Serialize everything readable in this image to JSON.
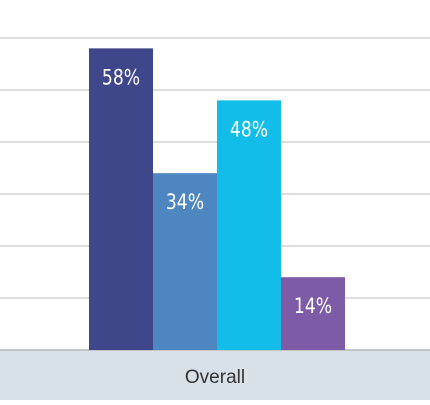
{
  "chart_data": {
    "type": "bar",
    "categories": [
      "Overall"
    ],
    "series": [
      {
        "color": "#3f478b",
        "values": [
          58
        ],
        "value_labels": [
          "58%"
        ]
      },
      {
        "color": "#4d86c0",
        "values": [
          34
        ],
        "value_labels": [
          "34%"
        ]
      },
      {
        "color": "#12bde9",
        "values": [
          48
        ],
        "value_labels": [
          "48%"
        ]
      },
      {
        "color": "#7d5ba6",
        "values": [
          14
        ],
        "value_labels": [
          "14%"
        ]
      }
    ],
    "ylim": [
      0,
      67.3
    ],
    "yticks": [
      0,
      10,
      20,
      30,
      40,
      50,
      60
    ],
    "grid": true
  }
}
